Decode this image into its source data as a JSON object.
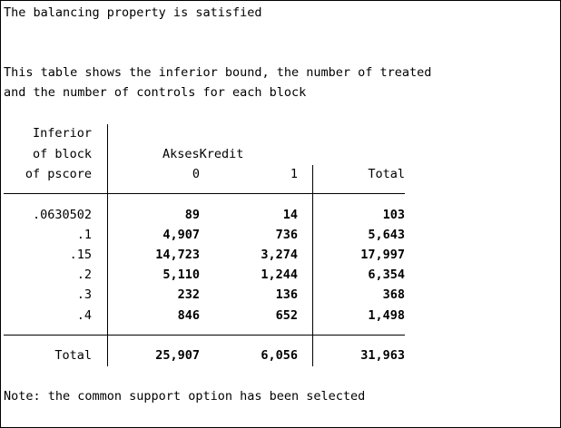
{
  "output": {
    "line1": "The balancing property is satisfied",
    "desc_line1": "This table shows the inferior bound, the number of treated",
    "desc_line2": "and the number of controls for each block",
    "note": "Note: the common support option has been selected"
  },
  "table": {
    "row_header_lines": [
      "Inferior",
      "of block",
      "of pscore"
    ],
    "group_header": "AksesKredit",
    "col_headers": [
      "0",
      "1",
      "Total"
    ],
    "rows": [
      {
        "label": ".0630502",
        "c0": "89",
        "c1": "14",
        "total": "103"
      },
      {
        "label": ".1",
        "c0": "4,907",
        "c1": "736",
        "total": "5,643"
      },
      {
        "label": ".15",
        "c0": "14,723",
        "c1": "3,274",
        "total": "17,997"
      },
      {
        "label": ".2",
        "c0": "5,110",
        "c1": "1,244",
        "total": "6,354"
      },
      {
        "label": ".3",
        "c0": "232",
        "c1": "136",
        "total": "368"
      },
      {
        "label": ".4",
        "c0": "846",
        "c1": "652",
        "total": "1,498"
      }
    ],
    "total_row": {
      "label": "Total",
      "c0": "25,907",
      "c1": "6,056",
      "total": "31,963"
    }
  }
}
